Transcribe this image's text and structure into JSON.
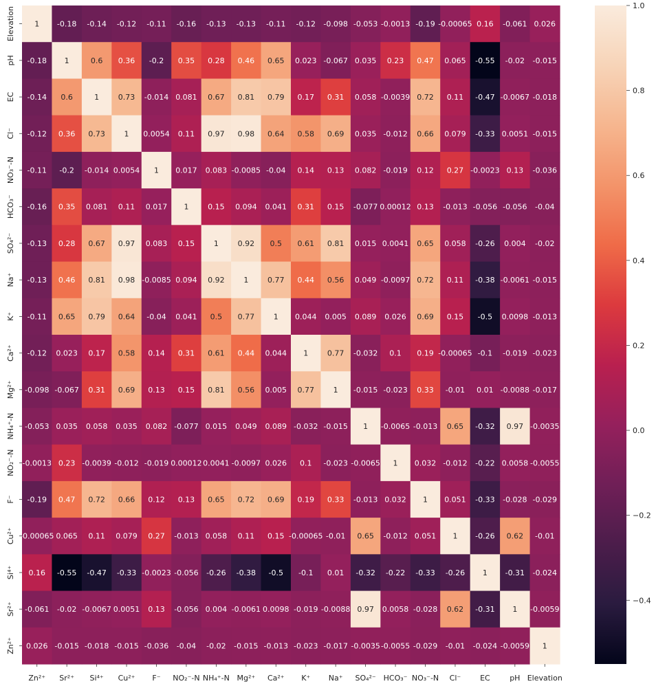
{
  "chart_data": {
    "type": "heatmap",
    "x_labels": [
      "Zn²⁺",
      "Sr²⁺",
      "Si⁴⁺",
      "Cu²⁺",
      "F⁻",
      "NO₂⁻-N",
      "NH₄⁺-N",
      "Mg²⁺",
      "Ca²⁺",
      "K⁺",
      "Na⁺",
      "SO₄²⁻",
      "HCO₃⁻",
      "NO₃⁻-N",
      "Cl⁻",
      "EC",
      "pH",
      "Elevation"
    ],
    "y_labels": [
      "Elevation",
      "pH",
      "EC",
      "Cl⁻",
      "NO₃⁻-N",
      "HCO₃⁻",
      "SO₄²⁻",
      "Na⁺",
      "K⁺",
      "Ca²⁺",
      "Mg²⁺",
      "NH₄⁺-N",
      "NO₂⁻-N",
      "F⁻",
      "Cu²⁺",
      "Si⁴⁺",
      "Sr²⁺",
      "Zn²⁺"
    ],
    "values": [
      [
        "1",
        "-0.18",
        "-0.14",
        "-0.12",
        "-0.11",
        "-0.16",
        "-0.13",
        "-0.13",
        "-0.11",
        "-0.12",
        "-0.098",
        "-0.053",
        "-0.0013",
        "-0.19",
        "-0.00065",
        "0.16",
        "-0.061",
        "0.026"
      ],
      [
        "-0.18",
        "1",
        "0.6",
        "0.36",
        "-0.2",
        "0.35",
        "0.28",
        "0.46",
        "0.65",
        "0.023",
        "-0.067",
        "0.035",
        "0.23",
        "0.47",
        "0.065",
        "-0.55",
        "-0.02",
        "-0.015"
      ],
      [
        "-0.14",
        "0.6",
        "1",
        "0.73",
        "-0.014",
        "0.081",
        "0.67",
        "0.81",
        "0.79",
        "0.17",
        "0.31",
        "0.058",
        "-0.0039",
        "0.72",
        "0.11",
        "-0.47",
        "-0.0067",
        "-0.018"
      ],
      [
        "-0.12",
        "0.36",
        "0.73",
        "1",
        "0.0054",
        "0.11",
        "0.97",
        "0.98",
        "0.64",
        "0.58",
        "0.69",
        "0.035",
        "-0.012",
        "0.66",
        "0.079",
        "-0.33",
        "0.0051",
        "-0.015"
      ],
      [
        "-0.11",
        "-0.2",
        "-0.014",
        "0.0054",
        "1",
        "0.017",
        "0.083",
        "-0.0085",
        "-0.04",
        "0.14",
        "0.13",
        "0.082",
        "-0.019",
        "0.12",
        "0.27",
        "-0.0023",
        "0.13",
        "-0.036"
      ],
      [
        "-0.16",
        "0.35",
        "0.081",
        "0.11",
        "0.017",
        "1",
        "0.15",
        "0.094",
        "0.041",
        "0.31",
        "0.15",
        "-0.077",
        "0.00012",
        "0.13",
        "-0.013",
        "-0.056",
        "-0.056",
        "-0.04"
      ],
      [
        "-0.13",
        "0.28",
        "0.67",
        "0.97",
        "0.083",
        "0.15",
        "1",
        "0.92",
        "0.5",
        "0.61",
        "0.81",
        "0.015",
        "0.0041",
        "0.65",
        "0.058",
        "-0.26",
        "0.004",
        "-0.02"
      ],
      [
        "-0.13",
        "0.46",
        "0.81",
        "0.98",
        "-0.0085",
        "0.094",
        "0.92",
        "1",
        "0.77",
        "0.44",
        "0.56",
        "0.049",
        "-0.0097",
        "0.72",
        "0.11",
        "-0.38",
        "-0.0061",
        "-0.015"
      ],
      [
        "-0.11",
        "0.65",
        "0.79",
        "0.64",
        "-0.04",
        "0.041",
        "0.5",
        "0.77",
        "1",
        "0.044",
        "0.005",
        "0.089",
        "0.026",
        "0.69",
        "0.15",
        "-0.5",
        "0.0098",
        "-0.013"
      ],
      [
        "-0.12",
        "0.023",
        "0.17",
        "0.58",
        "0.14",
        "0.31",
        "0.61",
        "0.44",
        "0.044",
        "1",
        "0.77",
        "-0.032",
        "0.1",
        "0.19",
        "-0.00065",
        "-0.1",
        "-0.019",
        "-0.023"
      ],
      [
        "-0.098",
        "-0.067",
        "0.31",
        "0.69",
        "0.13",
        "0.15",
        "0.81",
        "0.56",
        "0.005",
        "0.77",
        "1",
        "-0.015",
        "-0.023",
        "0.33",
        "-0.01",
        "0.01",
        "-0.0088",
        "-0.017"
      ],
      [
        "-0.053",
        "0.035",
        "0.058",
        "0.035",
        "0.082",
        "-0.077",
        "0.015",
        "0.049",
        "0.089",
        "-0.032",
        "-0.015",
        "1",
        "-0.0065",
        "-0.013",
        "0.65",
        "-0.32",
        "0.97",
        "-0.0035"
      ],
      [
        "-0.0013",
        "0.23",
        "-0.0039",
        "-0.012",
        "-0.019",
        "0.00012",
        "0.0041",
        "-0.0097",
        "0.026",
        "0.1",
        "-0.023",
        "-0.0065",
        "1",
        "0.032",
        "-0.012",
        "-0.22",
        "0.0058",
        "-0.0055"
      ],
      [
        "-0.19",
        "0.47",
        "0.72",
        "0.66",
        "0.12",
        "0.13",
        "0.65",
        "0.72",
        "0.69",
        "0.19",
        "0.33",
        "-0.013",
        "0.032",
        "1",
        "0.051",
        "-0.33",
        "-0.028",
        "-0.029"
      ],
      [
        "-0.00065",
        "0.065",
        "0.11",
        "0.079",
        "0.27",
        "-0.013",
        "0.058",
        "0.11",
        "0.15",
        "-0.00065",
        "-0.01",
        "0.65",
        "-0.012",
        "0.051",
        "1",
        "-0.26",
        "0.62",
        "-0.01"
      ],
      [
        "0.16",
        "-0.55",
        "-0.47",
        "-0.33",
        "-0.0023",
        "-0.056",
        "-0.26",
        "-0.38",
        "-0.5",
        "-0.1",
        "0.01",
        "-0.32",
        "-0.22",
        "-0.33",
        "-0.26",
        "1",
        "-0.31",
        "-0.024"
      ],
      [
        "-0.061",
        "-0.02",
        "-0.0067",
        "0.0051",
        "0.13",
        "-0.056",
        "0.004",
        "-0.0061",
        "0.0098",
        "-0.019",
        "-0.0088",
        "0.97",
        "0.0058",
        "-0.028",
        "0.62",
        "-0.31",
        "1",
        "-0.0059"
      ],
      [
        "0.026",
        "-0.015",
        "-0.018",
        "-0.015",
        "-0.036",
        "-0.04",
        "-0.02",
        "-0.015",
        "-0.013",
        "-0.023",
        "-0.017",
        "-0.0035",
        "-0.0055",
        "-0.029",
        "-0.01",
        "-0.024",
        "-0.0059",
        "1"
      ]
    ],
    "colorbar": {
      "min": -0.55,
      "max": 1.0,
      "ticks": [
        "1.0",
        "0.8",
        "0.6",
        "0.4",
        "0.2",
        "0.0",
        "−0.2",
        "−0.4"
      ],
      "tick_values": [
        1.0,
        0.8,
        0.6,
        0.4,
        0.2,
        0.0,
        -0.2,
        -0.4
      ],
      "colormap": "rocket",
      "color_stops": [
        "#03051a",
        "#2a1b3f",
        "#4c1d4b",
        "#701f57",
        "#95205c",
        "#b9204f",
        "#dc3a3e",
        "#ef6b48",
        "#f3946a",
        "#f6b68f",
        "#f7d4b8",
        "#faebdd"
      ]
    },
    "grid": false,
    "legend": "colorbar-right"
  }
}
